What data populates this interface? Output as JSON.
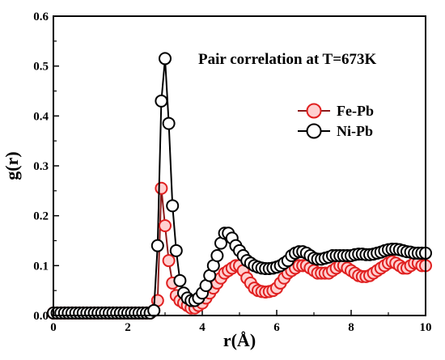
{
  "chart_data": {
    "type": "line",
    "title": "Pair correlation at T=673K",
    "xlabel": "r(Å)",
    "ylabel": "g(r)",
    "xlim": [
      0,
      10
    ],
    "ylim": [
      0,
      0.6
    ],
    "xticks": [
      0,
      2,
      4,
      6,
      8,
      10
    ],
    "yticks": [
      0.0,
      0.1,
      0.2,
      0.3,
      0.4,
      0.5,
      0.6
    ],
    "grid": false,
    "legend_position": "upper-right",
    "series": [
      {
        "name": "Fe-Pb",
        "line_color": "#8B1A1A",
        "marker_edge_color": "#E02020",
        "marker_fill_color": "#FFD0D0",
        "x": [
          0.0,
          0.1,
          0.2,
          0.3,
          0.4,
          0.5,
          0.6,
          0.7,
          0.8,
          0.9,
          1.0,
          1.1,
          1.2,
          1.3,
          1.4,
          1.5,
          1.6,
          1.7,
          1.8,
          1.9,
          2.0,
          2.1,
          2.2,
          2.3,
          2.4,
          2.5,
          2.6,
          2.7,
          2.8,
          2.9,
          3.0,
          3.1,
          3.2,
          3.3,
          3.4,
          3.5,
          3.6,
          3.7,
          3.8,
          3.9,
          4.0,
          4.1,
          4.2,
          4.3,
          4.4,
          4.5,
          4.6,
          4.7,
          4.8,
          4.9,
          5.0,
          5.1,
          5.2,
          5.3,
          5.4,
          5.5,
          5.6,
          5.7,
          5.8,
          5.9,
          6.0,
          6.1,
          6.2,
          6.3,
          6.4,
          6.5,
          6.6,
          6.7,
          6.8,
          6.9,
          7.0,
          7.1,
          7.2,
          7.3,
          7.4,
          7.5,
          7.6,
          7.7,
          7.8,
          7.9,
          8.0,
          8.1,
          8.2,
          8.3,
          8.4,
          8.5,
          8.6,
          8.7,
          8.8,
          8.9,
          9.0,
          9.1,
          9.2,
          9.3,
          9.4,
          9.5,
          9.6,
          9.7,
          9.8,
          9.9,
          10.0
        ],
        "y": [
          0.005,
          0.005,
          0.005,
          0.005,
          0.005,
          0.005,
          0.005,
          0.005,
          0.005,
          0.005,
          0.005,
          0.005,
          0.005,
          0.005,
          0.005,
          0.005,
          0.005,
          0.005,
          0.005,
          0.005,
          0.005,
          0.005,
          0.005,
          0.005,
          0.005,
          0.005,
          0.005,
          0.01,
          0.03,
          0.255,
          0.18,
          0.11,
          0.065,
          0.04,
          0.03,
          0.025,
          0.02,
          0.015,
          0.015,
          0.02,
          0.025,
          0.035,
          0.045,
          0.055,
          0.065,
          0.075,
          0.085,
          0.09,
          0.095,
          0.1,
          0.1,
          0.09,
          0.075,
          0.065,
          0.055,
          0.05,
          0.048,
          0.047,
          0.048,
          0.05,
          0.055,
          0.065,
          0.075,
          0.085,
          0.09,
          0.095,
          0.1,
          0.1,
          0.1,
          0.095,
          0.09,
          0.085,
          0.085,
          0.085,
          0.085,
          0.09,
          0.095,
          0.1,
          0.1,
          0.095,
          0.09,
          0.085,
          0.08,
          0.078,
          0.078,
          0.08,
          0.085,
          0.09,
          0.095,
          0.1,
          0.105,
          0.108,
          0.105,
          0.1,
          0.095,
          0.095,
          0.1,
          0.105,
          0.105,
          0.1,
          0.1
        ]
      },
      {
        "name": "Ni-Pb",
        "line_color": "#000000",
        "marker_edge_color": "#000000",
        "marker_fill_color": "#FFFFFF",
        "x": [
          0.0,
          0.1,
          0.2,
          0.3,
          0.4,
          0.5,
          0.6,
          0.7,
          0.8,
          0.9,
          1.0,
          1.1,
          1.2,
          1.3,
          1.4,
          1.5,
          1.6,
          1.7,
          1.8,
          1.9,
          2.0,
          2.1,
          2.2,
          2.3,
          2.4,
          2.5,
          2.6,
          2.7,
          2.8,
          2.9,
          3.0,
          3.1,
          3.2,
          3.3,
          3.4,
          3.5,
          3.6,
          3.7,
          3.8,
          3.9,
          4.0,
          4.1,
          4.2,
          4.3,
          4.4,
          4.5,
          4.6,
          4.7,
          4.8,
          4.9,
          5.0,
          5.1,
          5.2,
          5.3,
          5.4,
          5.5,
          5.6,
          5.7,
          5.8,
          5.9,
          6.0,
          6.1,
          6.2,
          6.3,
          6.4,
          6.5,
          6.6,
          6.7,
          6.8,
          6.9,
          7.0,
          7.1,
          7.2,
          7.3,
          7.4,
          7.5,
          7.6,
          7.7,
          7.8,
          7.9,
          8.0,
          8.1,
          8.2,
          8.3,
          8.4,
          8.5,
          8.6,
          8.7,
          8.8,
          8.9,
          9.0,
          9.1,
          9.2,
          9.3,
          9.4,
          9.5,
          9.6,
          9.7,
          9.8,
          9.9,
          10.0
        ],
        "y": [
          0.005,
          0.005,
          0.005,
          0.005,
          0.005,
          0.005,
          0.005,
          0.005,
          0.005,
          0.005,
          0.005,
          0.005,
          0.005,
          0.005,
          0.005,
          0.005,
          0.005,
          0.005,
          0.005,
          0.005,
          0.005,
          0.005,
          0.005,
          0.005,
          0.005,
          0.005,
          0.005,
          0.01,
          0.14,
          0.43,
          0.515,
          0.385,
          0.22,
          0.13,
          0.07,
          0.045,
          0.035,
          0.03,
          0.03,
          0.035,
          0.045,
          0.06,
          0.08,
          0.1,
          0.12,
          0.145,
          0.165,
          0.165,
          0.155,
          0.14,
          0.13,
          0.12,
          0.11,
          0.105,
          0.1,
          0.097,
          0.095,
          0.094,
          0.094,
          0.095,
          0.097,
          0.1,
          0.105,
          0.11,
          0.12,
          0.125,
          0.128,
          0.128,
          0.125,
          0.12,
          0.115,
          0.113,
          0.113,
          0.115,
          0.117,
          0.12,
          0.12,
          0.12,
          0.12,
          0.12,
          0.12,
          0.122,
          0.123,
          0.123,
          0.122,
          0.122,
          0.123,
          0.125,
          0.127,
          0.13,
          0.132,
          0.133,
          0.133,
          0.132,
          0.13,
          0.128,
          0.127,
          0.125,
          0.125,
          0.125,
          0.125
        ]
      }
    ]
  }
}
